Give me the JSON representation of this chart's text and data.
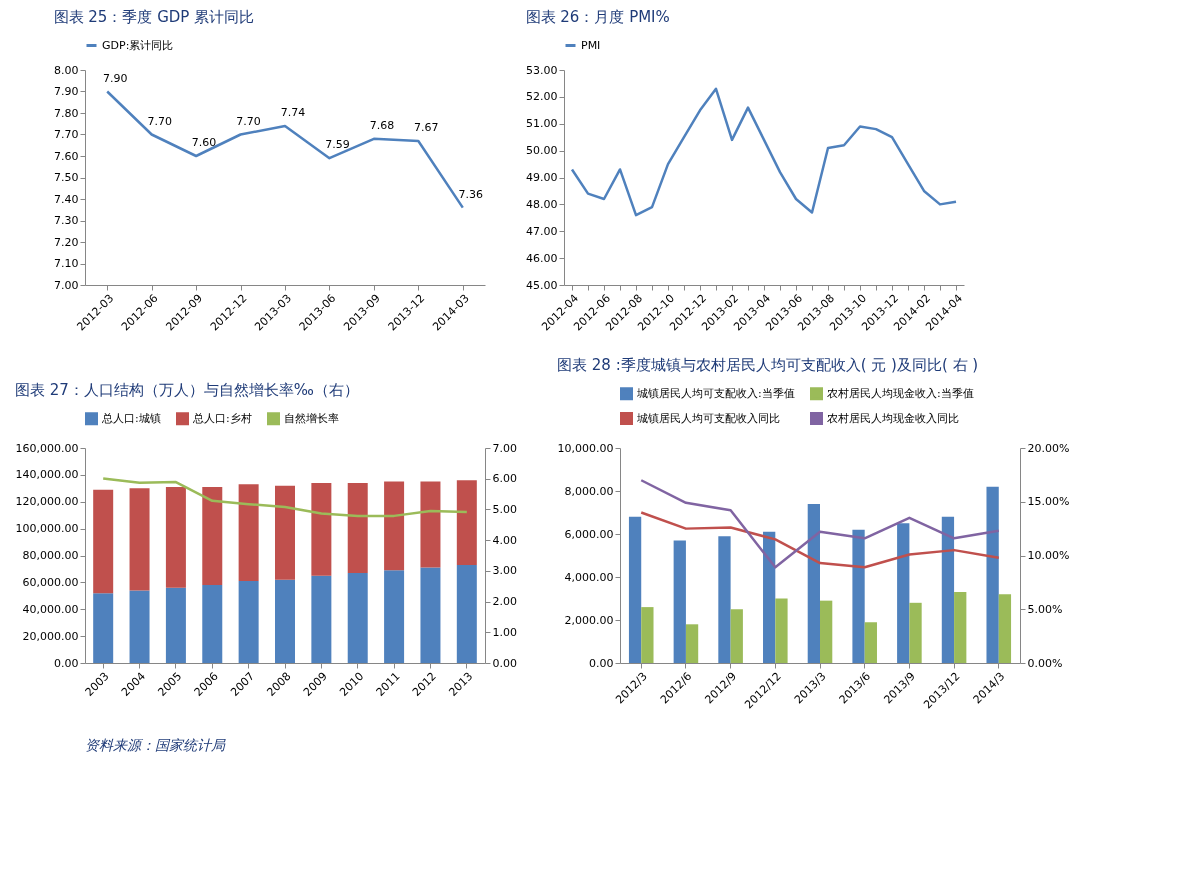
{
  "chart_data": [
    {
      "type": "line",
      "title": "图表 25：季度 GDP 累计同比",
      "categories": [
        "2012-03",
        "2012-06",
        "2012-09",
        "2012-12",
        "2013-03",
        "2013-06",
        "2013-09",
        "2013-12",
        "2014-03"
      ],
      "series": [
        {
          "name": "GDP:累计同比",
          "color": "#4f81bd",
          "values": [
            7.9,
            7.7,
            7.6,
            7.7,
            7.74,
            7.59,
            7.68,
            7.67,
            7.36
          ],
          "value_labels": [
            "7.90",
            "7.70",
            "7.60",
            "7.70",
            "7.74",
            "7.59",
            "7.68",
            "7.67",
            "7.36"
          ]
        }
      ],
      "ylim": [
        7,
        8
      ],
      "yticks": [
        {
          "value": 7,
          "label": "7.00"
        },
        {
          "value": 7.1,
          "label": "7.10"
        },
        {
          "value": 7.2,
          "label": "7.20"
        },
        {
          "value": 7.3,
          "label": "7.30"
        },
        {
          "value": 7.4,
          "label": "7.40"
        },
        {
          "value": 7.5,
          "label": "7.50"
        },
        {
          "value": 7.6,
          "label": "7.60"
        },
        {
          "value": 7.7,
          "label": "7.70"
        },
        {
          "value": 7.8,
          "label": "7.80"
        },
        {
          "value": 7.9,
          "label": "7.90"
        },
        {
          "value": 8,
          "label": "8.00"
        }
      ],
      "legend": "top",
      "grid": false
    },
    {
      "type": "line",
      "title": "图表 26：月度 PMI%",
      "categories": [
        "2012-04",
        null,
        "2012-06",
        null,
        "2012-08",
        null,
        "2012-10",
        null,
        "2012-12",
        null,
        "2013-02",
        null,
        "2013-04",
        null,
        "2013-06",
        null,
        "2013-08",
        null,
        "2013-10",
        null,
        "2013-12",
        null,
        "2014-02",
        null,
        "2014-04"
      ],
      "series": [
        {
          "name": "PMI",
          "color": "#4f81bd",
          "values": [
            49.3,
            48.4,
            48.2,
            49.3,
            47.6,
            47.9,
            49.5,
            50.5,
            51.5,
            52.3,
            50.4,
            51.6,
            50.4,
            49.2,
            48.2,
            47.7,
            50.1,
            50.2,
            50.9,
            50.8,
            50.5,
            49.5,
            48.5,
            48.0,
            48.1
          ]
        }
      ],
      "ylim": [
        45,
        53
      ],
      "yticks": [
        {
          "value": 45,
          "label": "45.00"
        },
        {
          "value": 46,
          "label": "46.00"
        },
        {
          "value": 47,
          "label": "47.00"
        },
        {
          "value": 48,
          "label": "48.00"
        },
        {
          "value": 49,
          "label": "49.00"
        },
        {
          "value": 50,
          "label": "50.00"
        },
        {
          "value": 51,
          "label": "51.00"
        },
        {
          "value": 52,
          "label": "52.00"
        },
        {
          "value": 53,
          "label": "53.00"
        }
      ],
      "legend": "top",
      "grid": false
    },
    {
      "type": "bar",
      "title": "图表 27：人口结构（万人）与自然增长率‰（右）",
      "stacked": true,
      "categories": [
        "2003",
        "2004",
        "2005",
        "2006",
        "2007",
        "2008",
        "2009",
        "2010",
        "2011",
        "2012",
        "2013"
      ],
      "series": [
        {
          "name": "总人口:城镇",
          "color": "#4f81bd",
          "values": [
            52000,
            54000,
            56000,
            58000,
            61000,
            62000,
            65000,
            67000,
            69000,
            71000,
            73000
          ]
        },
        {
          "name": "总人口:乡村",
          "color": "#c0504d",
          "values": [
            77000,
            76000,
            75000,
            73000,
            72000,
            70000,
            69000,
            67000,
            66000,
            64000,
            63000
          ]
        },
        {
          "name": "自然增长率",
          "type": "line",
          "axis": "y2",
          "color": "#9bbb59",
          "values": [
            6.01,
            5.87,
            5.89,
            5.28,
            5.17,
            5.08,
            4.87,
            4.79,
            4.79,
            4.95,
            4.92
          ]
        }
      ],
      "ylim": [
        0,
        160000
      ],
      "yticks": [
        {
          "value": 0,
          "label": "0.00"
        },
        {
          "value": 20000,
          "label": "20,000.00"
        },
        {
          "value": 40000,
          "label": "40,000.00"
        },
        {
          "value": 60000,
          "label": "60,000.00"
        },
        {
          "value": 80000,
          "label": "80,000.00"
        },
        {
          "value": 100000,
          "label": "100,000.00"
        },
        {
          "value": 120000,
          "label": "120,000.00"
        },
        {
          "value": 140000,
          "label": "140,000.00"
        },
        {
          "value": 160000,
          "label": "160,000.00"
        }
      ],
      "y2lim": [
        0,
        7
      ],
      "y2ticks": [
        {
          "value": 0,
          "label": "0.00"
        },
        {
          "value": 1,
          "label": "1.00"
        },
        {
          "value": 2,
          "label": "2.00"
        },
        {
          "value": 3,
          "label": "3.00"
        },
        {
          "value": 4,
          "label": "4.00"
        },
        {
          "value": 5,
          "label": "5.00"
        },
        {
          "value": 6,
          "label": "6.00"
        },
        {
          "value": 7,
          "label": "7.00"
        }
      ],
      "legend": "top",
      "grid": false
    },
    {
      "type": "bar",
      "title": "图表 28 :季度城镇与农村居民人均可支配收入( 元 )及同比( 右 )",
      "categories": [
        "2012/3",
        "2012/6",
        "2012/9",
        "2012/12",
        "2013/3",
        "2013/6",
        "2013/9",
        "2013/12",
        "2014/3"
      ],
      "series": [
        {
          "name": "城镇居民人均可支配收入:当季值",
          "color": "#4f81bd",
          "values": [
            6800,
            5700,
            5900,
            6100,
            7400,
            6200,
            6500,
            6800,
            8200
          ]
        },
        {
          "name": "农村居民人均现金收入:当季值",
          "color": "#9bbb59",
          "values": [
            2600,
            1800,
            2500,
            3000,
            2900,
            1900,
            2800,
            3300,
            3200
          ]
        },
        {
          "name": "城镇居民人均可支配收入同比",
          "type": "line",
          "axis": "y2",
          "color": "#c0504d",
          "values": [
            14.0,
            12.5,
            12.6,
            11.5,
            9.3,
            8.9,
            10.1,
            10.5,
            9.8
          ]
        },
        {
          "name": "农村居民人均现金收入同比",
          "type": "line",
          "axis": "y2",
          "color": "#8064a2",
          "values": [
            17.0,
            14.9,
            14.2,
            8.9,
            12.2,
            11.6,
            13.5,
            11.6,
            12.3
          ]
        }
      ],
      "ylim": [
        0,
        10000
      ],
      "yticks": [
        {
          "value": 0,
          "label": "0.00"
        },
        {
          "value": 2000,
          "label": "2,000.00"
        },
        {
          "value": 4000,
          "label": "4,000.00"
        },
        {
          "value": 6000,
          "label": "6,000.00"
        },
        {
          "value": 8000,
          "label": "8,000.00"
        },
        {
          "value": 10000,
          "label": "10,000.00"
        }
      ],
      "y2lim": [
        0,
        20
      ],
      "y2ticks": [
        {
          "value": 0,
          "label": "0.00%"
        },
        {
          "value": 5,
          "label": "5.00%"
        },
        {
          "value": 10,
          "label": "10.00%"
        },
        {
          "value": 15,
          "label": "15.00%"
        },
        {
          "value": 20,
          "label": "20.00%"
        }
      ],
      "legend": "top",
      "grid": false,
      "annotations": [
        "资料来源：国家统计局"
      ]
    }
  ]
}
